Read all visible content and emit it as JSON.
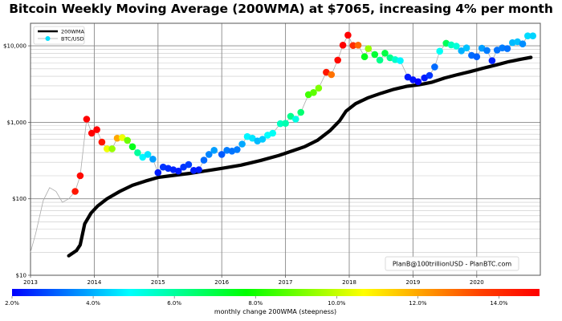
{
  "chart_data": {
    "type": "scatter",
    "title": "Bitcoin Weekly Moving Average (200WMA) at $7065, increasing 4% per month",
    "xlabel": "",
    "ylabel": "",
    "yscale": "log",
    "xlim": [
      2013,
      2021.0
    ],
    "ylim": [
      10,
      20000
    ],
    "grid": true,
    "x_ticks": [
      2013,
      2014,
      2015,
      2016,
      2017,
      2018,
      2019,
      2020
    ],
    "x_tick_labels": [
      "2013",
      "2014",
      "2015",
      "2016",
      "2017",
      "2018",
      "2019",
      "2020"
    ],
    "y_ticks": [
      10,
      100,
      1000,
      10000
    ],
    "y_tick_labels": [
      "$10",
      "$100",
      "$1,000",
      "$10,000"
    ],
    "legend": {
      "placement": "top-left",
      "entries": [
        {
          "label": "200WMA",
          "style": "thick-black-line"
        },
        {
          "label": "BTC/USD",
          "style": "gray-line-cyan-marker"
        }
      ]
    },
    "annotation": "PlanB@100trillionUSD  -  PlanBTC.com",
    "colorbar": {
      "title": "monthly change 200WMA (steepness)",
      "range": [
        2.0,
        15.0
      ],
      "tick_values": [
        2.0,
        4.0,
        6.0,
        8.0,
        10.0,
        12.0,
        14.0
      ],
      "tick_labels": [
        "2.0%",
        "4.0%",
        "6.0%",
        "8.0%",
        "10.0%",
        "12.0%",
        "14.0%"
      ],
      "colormap": [
        "#0000ff",
        "#0080ff",
        "#00ffff",
        "#00ff80",
        "#00ff00",
        "#80ff00",
        "#ffff00",
        "#ffa000",
        "#ff4000",
        "#ff0000"
      ]
    },
    "btc_price_early_line": [
      [
        2013.0,
        20
      ],
      [
        2013.08,
        35
      ],
      [
        2013.2,
        95
      ],
      [
        2013.3,
        140
      ],
      [
        2013.4,
        125
      ],
      [
        2013.5,
        90
      ],
      [
        2013.6,
        100
      ],
      [
        2013.7,
        125
      ]
    ],
    "series": [
      {
        "name": "200WMA",
        "points": [
          [
            2013.6,
            18
          ],
          [
            2013.72,
            21
          ],
          [
            2013.78,
            25
          ],
          [
            2013.85,
            47
          ],
          [
            2013.95,
            65
          ],
          [
            2014.05,
            80
          ],
          [
            2014.2,
            100
          ],
          [
            2014.4,
            125
          ],
          [
            2014.6,
            150
          ],
          [
            2014.8,
            170
          ],
          [
            2015.0,
            190
          ],
          [
            2015.2,
            200
          ],
          [
            2015.5,
            215
          ],
          [
            2015.8,
            235
          ],
          [
            2016.0,
            250
          ],
          [
            2016.3,
            275
          ],
          [
            2016.6,
            315
          ],
          [
            2016.9,
            370
          ],
          [
            2017.1,
            420
          ],
          [
            2017.3,
            480
          ],
          [
            2017.5,
            580
          ],
          [
            2017.7,
            780
          ],
          [
            2017.85,
            1050
          ],
          [
            2017.95,
            1400
          ],
          [
            2018.1,
            1750
          ],
          [
            2018.3,
            2100
          ],
          [
            2018.5,
            2400
          ],
          [
            2018.7,
            2700
          ],
          [
            2018.9,
            2950
          ],
          [
            2019.1,
            3100
          ],
          [
            2019.3,
            3350
          ],
          [
            2019.5,
            3800
          ],
          [
            2019.7,
            4200
          ],
          [
            2019.9,
            4600
          ],
          [
            2020.1,
            5100
          ],
          [
            2020.3,
            5600
          ],
          [
            2020.5,
            6200
          ],
          [
            2020.7,
            6700
          ],
          [
            2020.85,
            7065
          ]
        ]
      },
      {
        "name": "BTC/USD",
        "points": [
          [
            2013.7,
            125,
            14.5
          ],
          [
            2013.78,
            200,
            14.8
          ],
          [
            2013.88,
            1100,
            15.0
          ],
          [
            2013.96,
            720,
            15.0
          ],
          [
            2014.04,
            800,
            15.0
          ],
          [
            2014.12,
            550,
            14.5
          ],
          [
            2014.2,
            450,
            10.5
          ],
          [
            2014.28,
            450,
            9.5
          ],
          [
            2014.36,
            620,
            12.0
          ],
          [
            2014.44,
            630,
            10.5
          ],
          [
            2014.52,
            580,
            9.0
          ],
          [
            2014.6,
            480,
            7.5
          ],
          [
            2014.68,
            400,
            6.0
          ],
          [
            2014.76,
            350,
            4.8
          ],
          [
            2014.84,
            380,
            4.6
          ],
          [
            2014.92,
            330,
            3.8
          ],
          [
            2015.0,
            220,
            2.3
          ],
          [
            2015.08,
            260,
            2.6
          ],
          [
            2015.16,
            250,
            2.5
          ],
          [
            2015.24,
            240,
            2.4
          ],
          [
            2015.32,
            230,
            2.3
          ],
          [
            2015.4,
            260,
            2.6
          ],
          [
            2015.48,
            280,
            2.7
          ],
          [
            2015.56,
            235,
            2.3
          ],
          [
            2015.64,
            240,
            2.3
          ],
          [
            2015.72,
            320,
            3.2
          ],
          [
            2015.8,
            380,
            3.5
          ],
          [
            2015.88,
            430,
            3.8
          ],
          [
            2016.0,
            380,
            3.0
          ],
          [
            2016.08,
            430,
            3.4
          ],
          [
            2016.16,
            420,
            3.3
          ],
          [
            2016.24,
            440,
            3.4
          ],
          [
            2016.32,
            520,
            3.9
          ],
          [
            2016.4,
            650,
            4.8
          ],
          [
            2016.48,
            620,
            4.6
          ],
          [
            2016.56,
            570,
            4.1
          ],
          [
            2016.64,
            600,
            4.3
          ],
          [
            2016.72,
            680,
            4.9
          ],
          [
            2016.8,
            720,
            5.0
          ],
          [
            2016.92,
            960,
            5.6
          ],
          [
            2017.0,
            970,
            5.8
          ],
          [
            2017.08,
            1200,
            6.2
          ],
          [
            2017.16,
            1100,
            5.2
          ],
          [
            2017.24,
            1350,
            6.5
          ],
          [
            2017.36,
            2300,
            8.5
          ],
          [
            2017.44,
            2450,
            8.8
          ],
          [
            2017.52,
            2800,
            9.2
          ],
          [
            2017.64,
            4500,
            14.5
          ],
          [
            2017.72,
            4200,
            12.8
          ],
          [
            2017.82,
            6500,
            14.8
          ],
          [
            2017.9,
            10200,
            15.0
          ],
          [
            2017.98,
            13800,
            15.0
          ],
          [
            2018.06,
            10100,
            14.0
          ],
          [
            2018.14,
            10200,
            13.0
          ],
          [
            2018.24,
            7200,
            7.5
          ],
          [
            2018.3,
            9200,
            9.5
          ],
          [
            2018.4,
            7700,
            7.2
          ],
          [
            2018.48,
            6500,
            6.2
          ],
          [
            2018.56,
            8000,
            7.0
          ],
          [
            2018.64,
            7000,
            6.2
          ],
          [
            2018.72,
            6600,
            5.5
          ],
          [
            2018.8,
            6400,
            4.8
          ],
          [
            2018.92,
            3900,
            2.3
          ],
          [
            2019.0,
            3600,
            2.2
          ],
          [
            2019.08,
            3400,
            2.0
          ],
          [
            2019.18,
            3800,
            2.3
          ],
          [
            2019.26,
            4100,
            2.6
          ],
          [
            2019.34,
            5300,
            3.2
          ],
          [
            2019.42,
            8500,
            5.0
          ],
          [
            2019.52,
            10800,
            6.8
          ],
          [
            2019.6,
            10300,
            5.6
          ],
          [
            2019.68,
            9900,
            5.3
          ],
          [
            2019.76,
            8600,
            4.0
          ],
          [
            2019.84,
            9400,
            4.2
          ],
          [
            2019.92,
            7500,
            3.2
          ],
          [
            2020.0,
            7200,
            3.1
          ],
          [
            2020.08,
            9300,
            3.8
          ],
          [
            2020.16,
            8700,
            3.4
          ],
          [
            2020.24,
            6400,
            2.4
          ],
          [
            2020.32,
            8800,
            3.3
          ],
          [
            2020.4,
            9400,
            3.4
          ],
          [
            2020.48,
            9200,
            3.3
          ],
          [
            2020.56,
            11000,
            4.1
          ],
          [
            2020.64,
            11300,
            4.2
          ],
          [
            2020.72,
            10600,
            3.6
          ],
          [
            2020.8,
            13500,
            4.5
          ],
          [
            2020.88,
            13500,
            4.4
          ]
        ]
      }
    ]
  }
}
